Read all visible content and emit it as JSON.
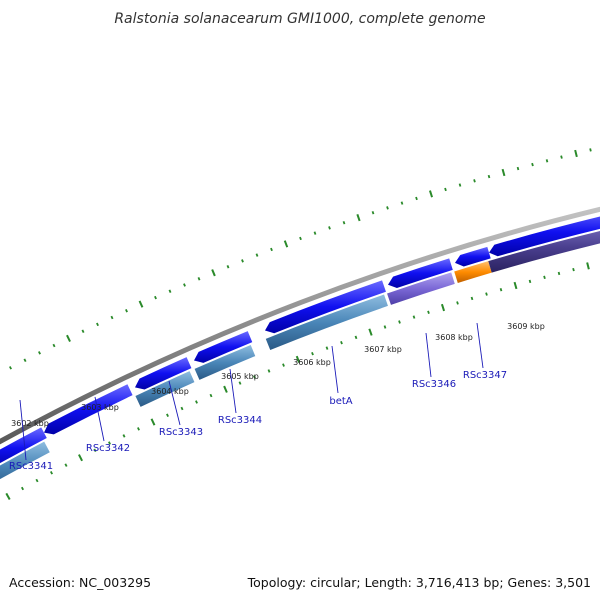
{
  "title": "Ralstonia solanacearum GMI1000, complete genome",
  "footer": {
    "accession": "Accession: NC_003295",
    "summary": "Topology: circular; Length: 3,716,413 bp; Genes: 3,501"
  },
  "colors": {
    "backbone": "#8c8c8c",
    "gene_forward": "#1010f0",
    "gene_steel": "#4a86b8",
    "gene_violet": "#7b68d6",
    "gene_orange": "#ff8c00",
    "gene_dark_violet": "#4a3f8f",
    "tick_green": "#2a8a2a",
    "label_blue": "#1a1ab8"
  },
  "kbp_labels": [
    "3602 kbp",
    "3603 kbp",
    "3604 kbp",
    "3605 kbp",
    "3606 kbp",
    "3607 kbp",
    "3608 kbp",
    "3609 kbp"
  ],
  "genes": [
    {
      "name": "RSc3341"
    },
    {
      "name": "RSc3342"
    },
    {
      "name": "RSc3343"
    },
    {
      "name": "RSc3344"
    },
    {
      "name": "betA"
    },
    {
      "name": "RSc3346"
    },
    {
      "name": "RSc3347"
    }
  ]
}
